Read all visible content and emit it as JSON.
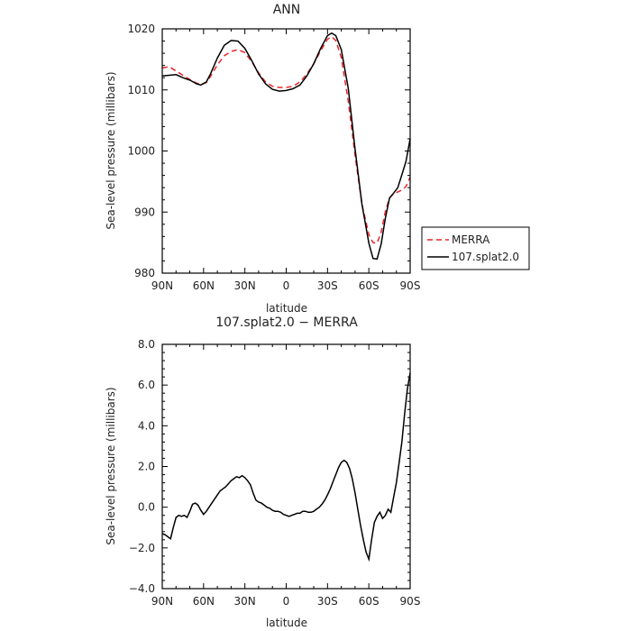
{
  "colors": {
    "merra": "#e8262a",
    "model": "#000000",
    "axis": "#000000",
    "background": "#ffffff"
  },
  "chart_data": [
    {
      "type": "line",
      "title": "ANN",
      "xlabel": "latitude",
      "ylabel": "Sea-level pressure (millibars)",
      "xlim": [
        90,
        -90
      ],
      "ylim": [
        980,
        1020
      ],
      "xtick_values": [
        90,
        60,
        30,
        0,
        -30,
        -60,
        -90
      ],
      "xtick_labels": [
        "90N",
        "60N",
        "30N",
        "0",
        "30S",
        "60S",
        "90S"
      ],
      "ytick_values": [
        980,
        990,
        1000,
        1010,
        1020
      ],
      "ytick_labels": [
        "980",
        "990",
        "1000",
        "1010",
        "1020"
      ],
      "legend": {
        "placement": "right",
        "entries": [
          "MERRA",
          "107.splat2.0"
        ]
      },
      "series": [
        {
          "name": "MERRA",
          "style": "dashed",
          "x": [
            90,
            85,
            80,
            75,
            70,
            65,
            62,
            58,
            55,
            50,
            45,
            40,
            35,
            30,
            25,
            20,
            15,
            10,
            5,
            0,
            -5,
            -10,
            -15,
            -20,
            -25,
            -30,
            -33,
            -36,
            -40,
            -45,
            -50,
            -55,
            -60,
            -63,
            -66,
            -69,
            -72,
            -75,
            -78,
            -81,
            -84,
            -87,
            -90
          ],
          "y": [
            1013.6,
            1013.8,
            1013.1,
            1012.4,
            1011.7,
            1011.1,
            1010.9,
            1011.2,
            1012.2,
            1014.1,
            1015.6,
            1016.3,
            1016.6,
            1016.1,
            1014.6,
            1012.8,
            1011.3,
            1010.6,
            1010.4,
            1010.4,
            1010.6,
            1011.3,
            1012.6,
            1014.3,
            1016.4,
            1018.3,
            1018.7,
            1018.1,
            1015.3,
            1008.2,
            999.3,
            991.3,
            986.3,
            985.0,
            984.9,
            986.7,
            990.1,
            992.3,
            993.0,
            993.3,
            993.6,
            994.2,
            995.7
          ]
        },
        {
          "name": "107.splat2.0",
          "style": "solid",
          "x": [
            90,
            85,
            80,
            75,
            70,
            65,
            62,
            58,
            55,
            50,
            45,
            40,
            35,
            30,
            25,
            20,
            15,
            10,
            5,
            0,
            -5,
            -10,
            -15,
            -20,
            -25,
            -30,
            -33,
            -36,
            -40,
            -45,
            -50,
            -55,
            -60,
            -63,
            -66,
            -69,
            -72,
            -75,
            -78,
            -81,
            -84,
            -87,
            -90
          ],
          "y": [
            1012.3,
            1012.4,
            1012.5,
            1012.0,
            1011.6,
            1011.0,
            1010.8,
            1011.3,
            1012.6,
            1015.2,
            1017.3,
            1018.1,
            1018.0,
            1016.8,
            1014.8,
            1012.6,
            1011.0,
            1010.1,
            1009.8,
            1009.9,
            1010.2,
            1010.8,
            1012.3,
            1014.3,
            1016.8,
            1018.9,
            1019.3,
            1018.9,
            1016.6,
            1010.3,
            1000.3,
            991.3,
            984.9,
            982.4,
            982.3,
            984.8,
            989.0,
            992.3,
            993.1,
            994.0,
            996.1,
            998.3,
            1002.0
          ]
        }
      ]
    },
    {
      "type": "line",
      "title": "107.splat2.0 − MERRA",
      "xlabel": "latitude",
      "ylabel": "Sea-level pressure (millibars)",
      "xlim": [
        90,
        -90
      ],
      "ylim": [
        -4.0,
        8.0
      ],
      "xtick_values": [
        90,
        60,
        30,
        0,
        -30,
        -60,
        -90
      ],
      "xtick_labels": [
        "90N",
        "60N",
        "30N",
        "0",
        "30S",
        "60S",
        "90S"
      ],
      "ytick_values": [
        -4.0,
        -2.0,
        0.0,
        2.0,
        4.0,
        6.0,
        8.0
      ],
      "ytick_labels": [
        "−4.0",
        "−2.0",
        "0.0",
        "2.0",
        "4.0",
        "6.0",
        "8.0"
      ],
      "series": [
        {
          "style": "solid",
          "x": [
            90,
            88,
            86,
            84,
            82,
            80,
            78,
            76,
            74,
            72,
            70,
            68,
            66,
            64,
            62,
            60,
            58,
            56,
            54,
            52,
            50,
            48,
            46,
            44,
            42,
            40,
            38,
            36,
            34,
            32,
            30,
            28,
            26,
            24,
            22,
            20,
            18,
            16,
            14,
            12,
            10,
            8,
            6,
            4,
            2,
            0,
            -2,
            -4,
            -6,
            -8,
            -10,
            -12,
            -14,
            -16,
            -18,
            -20,
            -22,
            -24,
            -26,
            -28,
            -30,
            -32,
            -34,
            -36,
            -38,
            -40,
            -42,
            -44,
            -46,
            -48,
            -50,
            -52,
            -54,
            -56,
            -58,
            -60,
            -62,
            -64,
            -66,
            -68,
            -70,
            -72,
            -74,
            -76,
            -78,
            -80,
            -82,
            -84,
            -86,
            -88,
            -90
          ],
          "y": [
            -1.3,
            -1.35,
            -1.45,
            -1.55,
            -1.0,
            -0.5,
            -0.4,
            -0.45,
            -0.4,
            -0.5,
            -0.2,
            0.15,
            0.2,
            0.1,
            -0.15,
            -0.35,
            -0.2,
            0.0,
            0.2,
            0.4,
            0.6,
            0.8,
            0.9,
            1.0,
            1.15,
            1.3,
            1.4,
            1.5,
            1.45,
            1.55,
            1.45,
            1.3,
            1.1,
            0.7,
            0.35,
            0.25,
            0.2,
            0.1,
            0.0,
            -0.05,
            -0.15,
            -0.2,
            -0.2,
            -0.25,
            -0.35,
            -0.4,
            -0.45,
            -0.4,
            -0.35,
            -0.3,
            -0.3,
            -0.2,
            -0.2,
            -0.25,
            -0.25,
            -0.2,
            -0.1,
            0.0,
            0.15,
            0.35,
            0.6,
            0.9,
            1.25,
            1.6,
            1.95,
            2.2,
            2.3,
            2.2,
            1.9,
            1.4,
            0.7,
            -0.1,
            -0.9,
            -1.6,
            -2.2,
            -2.55,
            -1.6,
            -0.75,
            -0.45,
            -0.25,
            -0.55,
            -0.4,
            -0.1,
            -0.25,
            0.5,
            1.2,
            2.2,
            3.2,
            4.6,
            5.8,
            6.6
          ]
        }
      ]
    }
  ]
}
